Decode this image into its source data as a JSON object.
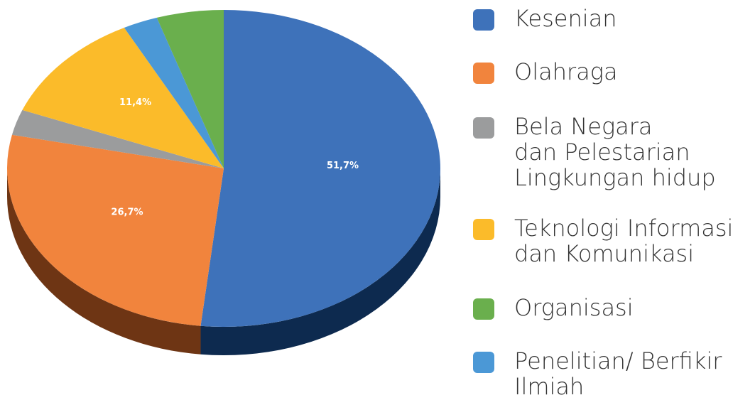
{
  "chart_data": {
    "type": "pie",
    "categories": [
      "Kesenian",
      "Olahraga",
      "Bela Negara\ndan Pelestarian\nLingkungan hidup",
      "Teknologi Informasi\ndan Komunikasi",
      "Organisasi",
      "Penelitian/ Berfikir\nIlmiah"
    ],
    "values": [
      51.7,
      26.7,
      2.6,
      11.4,
      5.0,
      2.6
    ],
    "value_labels": [
      "51,7%",
      "26,7%",
      null,
      "11,4%",
      null,
      null
    ],
    "colors": [
      "#3e72ba",
      "#f1843d",
      "#9b9c9d",
      "#fbbb2a",
      "#6aaf4d",
      "#4b98d6"
    ],
    "side_colors": [
      "#0d2a4f",
      "#6e3514",
      "#4a4a4a",
      "#7a5a10",
      "#2f5322",
      "#1f4a6c"
    ],
    "legend": "right"
  }
}
